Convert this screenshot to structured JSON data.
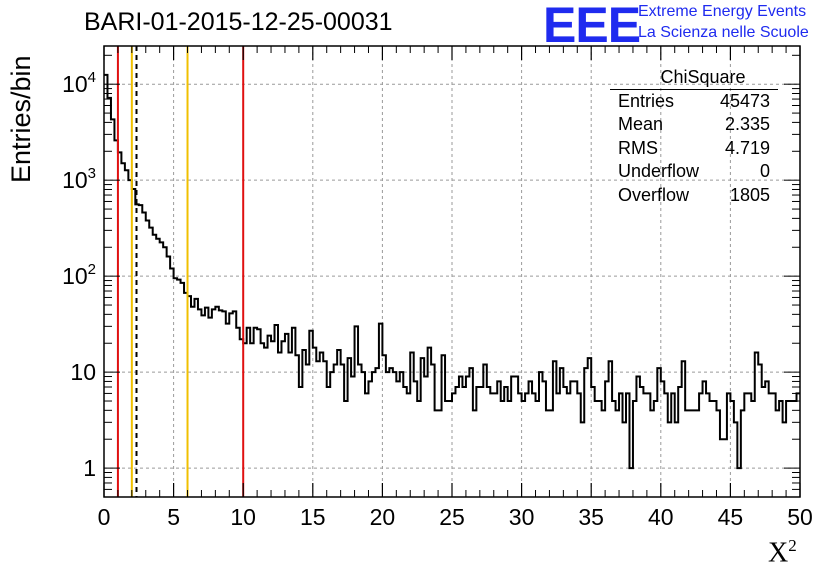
{
  "header": {
    "title": "BARI-01-2015-12-25-00031",
    "logo_mark": "EEE",
    "logo_line1": "Extreme Energy Events",
    "logo_line2": "La Scienza nelle Scuole"
  },
  "stats_box": {
    "title": "ChiSquare",
    "rows": [
      {
        "label": "Entries",
        "value": "45473"
      },
      {
        "label": "Mean",
        "value": "2.335"
      },
      {
        "label": "RMS",
        "value": "4.719"
      },
      {
        "label": "Underflow",
        "value": "0"
      },
      {
        "label": "Overflow",
        "value": "1805"
      }
    ]
  },
  "chart_data": {
    "type": "histogram",
    "title": "BARI-01-2015-12-25-00031",
    "xlabel": "X",
    "xlabel_superscript": "2",
    "ylabel": "Entries/bin",
    "xlim": [
      0,
      50
    ],
    "ylim": [
      0.5,
      25000
    ],
    "yscale": "log",
    "grid": true,
    "bin_width": 0.5,
    "x_ticks": [
      "0",
      "5",
      "10",
      "15",
      "20",
      "25",
      "30",
      "35",
      "40",
      "45",
      "50"
    ],
    "y_ticks": [
      {
        "value": 1,
        "label": "1"
      },
      {
        "value": 10,
        "label": "10"
      },
      {
        "value": 100,
        "label": "10",
        "exp": "2"
      },
      {
        "value": 1000,
        "label": "10",
        "exp": "3"
      },
      {
        "value": 10000,
        "label": "10",
        "exp": "4"
      }
    ],
    "values": [
      12500,
      7200,
      4300,
      2600,
      1950,
      1500,
      1270,
      1000,
      810,
      560,
      550,
      460,
      380,
      320,
      270,
      245,
      225,
      200,
      160,
      120,
      95,
      92,
      85,
      67,
      62,
      48,
      58,
      45,
      39,
      47,
      37,
      45,
      48,
      44,
      43,
      32,
      41,
      43,
      29,
      22,
      20,
      29,
      20,
      29,
      28,
      20,
      18,
      24,
      21,
      31,
      16,
      21,
      25,
      16,
      29,
      15,
      7,
      17,
      12,
      27,
      18,
      13,
      16,
      13,
      7,
      10,
      12,
      17,
      12,
      5,
      14,
      9,
      30,
      12,
      10,
      6,
      8,
      10,
      11,
      32,
      15,
      10,
      11,
      10,
      8,
      10,
      7,
      6,
      16,
      8,
      5,
      14,
      9,
      18,
      12,
      4,
      4,
      15,
      5,
      5,
      6,
      7,
      9,
      7,
      9,
      11,
      4,
      7,
      7,
      12,
      7,
      6,
      6,
      8,
      5,
      7,
      5,
      9,
      9,
      6,
      5,
      6,
      8,
      6,
      5,
      10,
      8,
      4,
      4,
      13,
      6,
      11,
      7,
      6,
      8,
      8,
      6,
      3,
      11,
      14,
      7,
      5,
      5,
      4,
      8,
      13,
      5,
      4,
      6,
      3,
      6,
      1,
      5,
      9,
      7,
      6,
      6,
      4,
      5,
      11,
      8,
      6,
      3,
      6,
      3,
      7,
      13,
      4,
      4,
      4,
      4,
      6,
      8,
      6,
      5,
      5,
      4,
      2,
      2,
      6,
      5,
      3,
      1,
      4,
      6,
      6,
      5,
      16,
      12,
      7,
      8,
      6,
      6,
      4,
      5,
      3,
      5,
      5,
      5,
      6
    ],
    "reference_lines": [
      {
        "x": 1.0,
        "color": "#e01010"
      },
      {
        "x": 2.0,
        "color": "#f0c000"
      },
      {
        "x": 2.335,
        "color": "#000000",
        "dashed": true
      },
      {
        "x": 6.0,
        "color": "#f0c000"
      },
      {
        "x": 10.0,
        "color": "#e01010"
      }
    ]
  }
}
